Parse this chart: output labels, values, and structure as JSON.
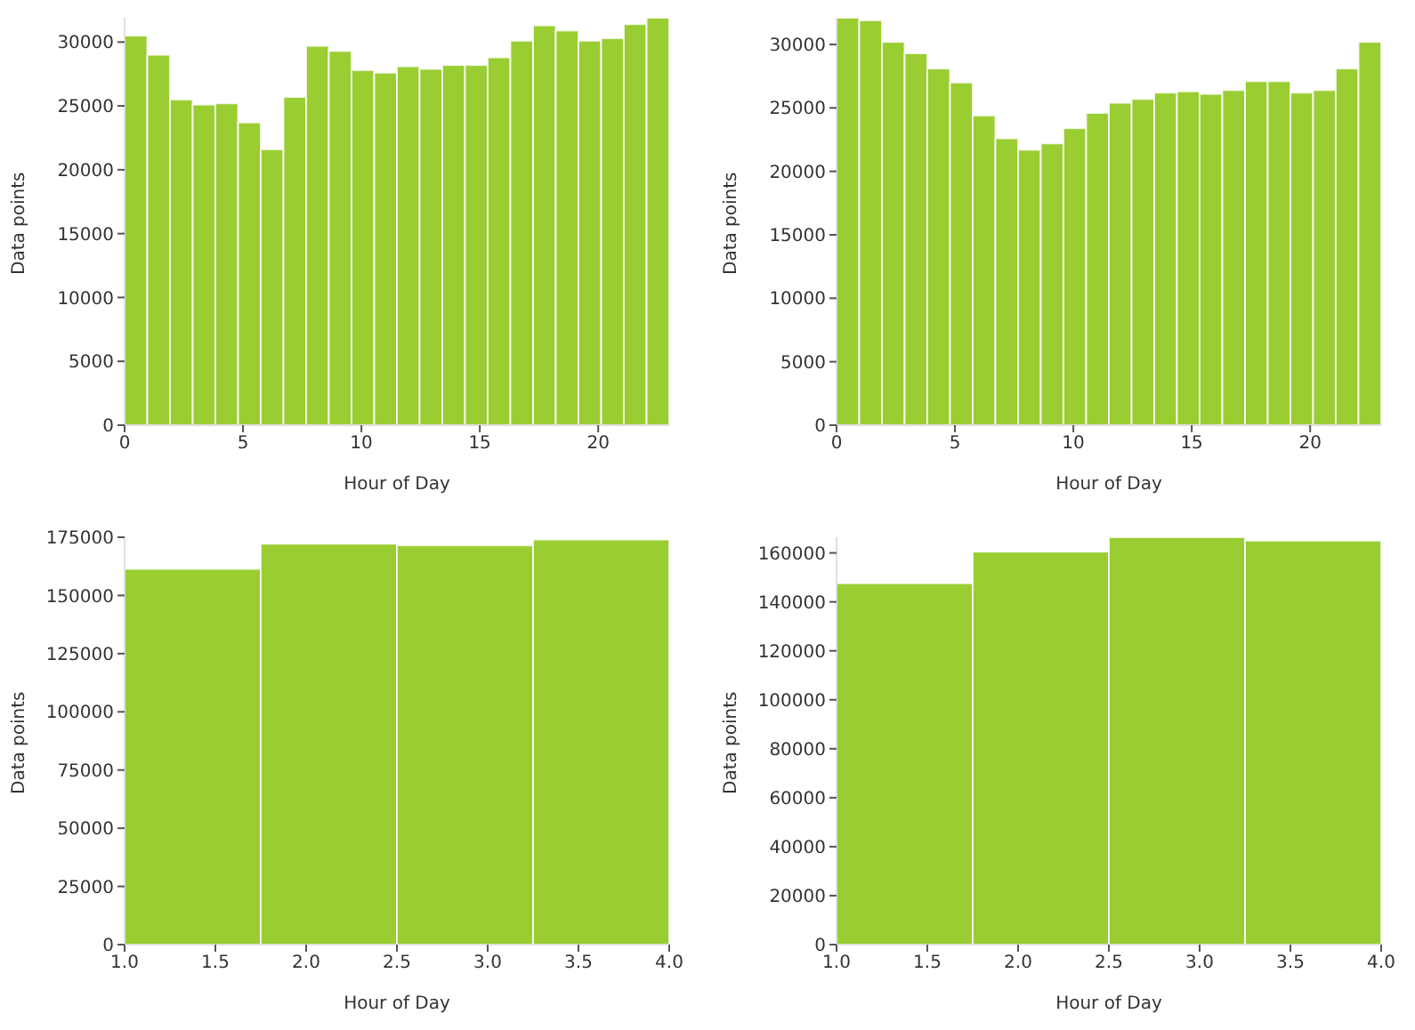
{
  "chart_data": [
    {
      "type": "histogram",
      "xlabel": "Hour of Day",
      "ylabel": "Data points",
      "color": "#9acd32",
      "bins": [
        0,
        0.958,
        1.917,
        2.875,
        3.833,
        4.792,
        5.75,
        6.708,
        7.667,
        8.625,
        9.583,
        10.542,
        11.5,
        12.458,
        13.417,
        14.375,
        15.333,
        16.292,
        17.25,
        18.208,
        19.167,
        20.125,
        21.083,
        22.042,
        23
      ],
      "values": [
        30500,
        29000,
        25500,
        25100,
        25200,
        23700,
        21600,
        25700,
        29700,
        29300,
        27800,
        27600,
        28100,
        27900,
        28200,
        28200,
        28800,
        30100,
        31300,
        30900,
        30100,
        30300,
        31400,
        31900
      ],
      "xlim": [
        0,
        23
      ],
      "xticks": [
        0,
        5,
        10,
        15,
        20
      ],
      "ylim": [
        0,
        31900
      ],
      "yticks": [
        0,
        5000,
        10000,
        15000,
        20000,
        25000,
        30000
      ],
      "grid": false
    },
    {
      "type": "histogram",
      "xlabel": "Hour of Day",
      "ylabel": "Data points",
      "color": "#9acd32",
      "bins": [
        0,
        0.958,
        1.917,
        2.875,
        3.833,
        4.792,
        5.75,
        6.708,
        7.667,
        8.625,
        9.583,
        10.542,
        11.5,
        12.458,
        13.417,
        14.375,
        15.333,
        16.292,
        17.25,
        18.208,
        19.167,
        20.125,
        21.083,
        22.042,
        23
      ],
      "values": [
        32100,
        31900,
        30200,
        29300,
        28100,
        27000,
        24400,
        22600,
        21700,
        22200,
        23400,
        24600,
        25400,
        25700,
        26200,
        26300,
        26100,
        26400,
        27100,
        27100,
        26200,
        26400,
        28100,
        30200
      ],
      "xlim": [
        0,
        23
      ],
      "xticks": [
        0,
        5,
        10,
        15,
        20
      ],
      "ylim": [
        0,
        32100
      ],
      "yticks": [
        0,
        5000,
        10000,
        15000,
        20000,
        25000,
        30000
      ],
      "grid": false
    },
    {
      "type": "histogram",
      "xlabel": "Hour of Day",
      "ylabel": "Data points",
      "color": "#9acd32",
      "bins": [
        1,
        1.75,
        2.5,
        3.25,
        4
      ],
      "values": [
        161400,
        172200,
        171500,
        174000
      ],
      "xlim": [
        1,
        4
      ],
      "xticks": [
        {
          "value": 1,
          "label": "1.0"
        },
        {
          "value": 1.5,
          "label": "1.5"
        },
        {
          "value": 2,
          "label": "2.0"
        },
        {
          "value": 2.5,
          "label": "2.5"
        },
        {
          "value": 3,
          "label": "3.0"
        },
        {
          "value": 3.5,
          "label": "3.5"
        },
        {
          "value": 4,
          "label": "4.0"
        }
      ],
      "ylim": [
        0,
        175000
      ],
      "yticks": [
        0,
        25000,
        50000,
        75000,
        100000,
        125000,
        150000,
        175000
      ],
      "grid": false
    },
    {
      "type": "histogram",
      "xlabel": "Hour of Day",
      "ylabel": "Data points",
      "color": "#9acd32",
      "bins": [
        1,
        1.75,
        2.5,
        3.25,
        4
      ],
      "values": [
        147600,
        160500,
        166400,
        165000
      ],
      "xlim": [
        1,
        4
      ],
      "xticks": [
        {
          "value": 1,
          "label": "1.0"
        },
        {
          "value": 1.5,
          "label": "1.5"
        },
        {
          "value": 2,
          "label": "2.0"
        },
        {
          "value": 2.5,
          "label": "2.5"
        },
        {
          "value": 3,
          "label": "3.0"
        },
        {
          "value": 3.5,
          "label": "3.5"
        },
        {
          "value": 4,
          "label": "4.0"
        }
      ],
      "ylim": [
        0,
        166400
      ],
      "yticks": [
        0,
        20000,
        40000,
        60000,
        80000,
        100000,
        120000,
        140000,
        160000
      ],
      "grid": false
    }
  ]
}
